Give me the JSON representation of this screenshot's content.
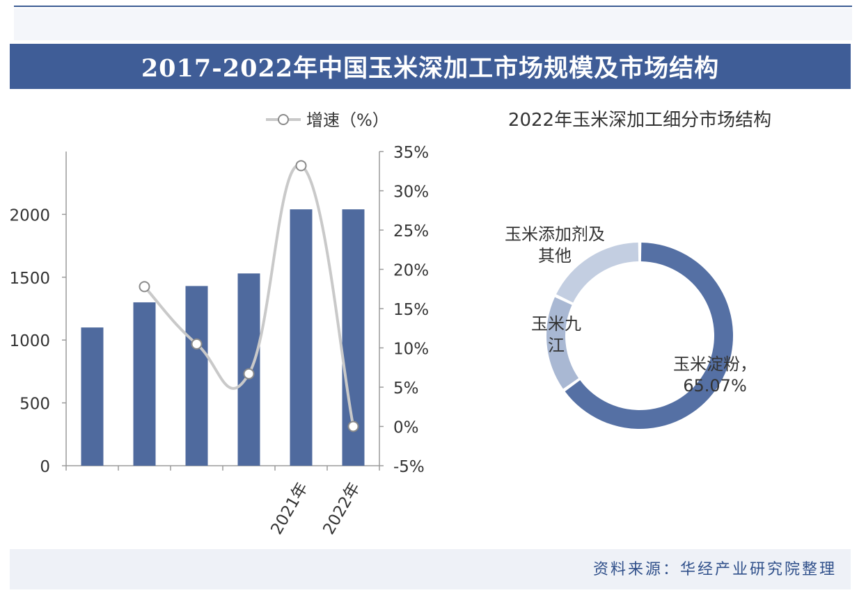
{
  "banner_title": "2017-2022年中国玉米深加工市场规模及市场结构",
  "footer": "资料来源：华经产业研究院整理",
  "colors": {
    "bar": "#4f6a9e",
    "line": "#c9c9c9",
    "banner": "#3f5d97",
    "donut_main": "#5570a4",
    "donut_second": "#a9b8d3",
    "donut_third": "#c3cee1"
  },
  "chart_data": [
    {
      "type": "bar",
      "title": "",
      "categories": [
        "",
        "",
        "",
        "",
        "2021年",
        "2022年"
      ],
      "series": [
        {
          "values": [
            1100,
            1300,
            1430,
            1530,
            2040,
            2040
          ]
        },
        {
          "name": "增速（%）",
          "type": "line",
          "axis": "right",
          "values": [
            null,
            17.8,
            10.5,
            6.7,
            33.2,
            0.0
          ]
        }
      ],
      "y_left_ticks": [
        "0",
        "500",
        "1000",
        "1500",
        "2000"
      ],
      "y_left_range": [
        0,
        2500
      ],
      "y_right_ticks": [
        "35%",
        "30%",
        "25%",
        "20%",
        "15%",
        "10%",
        "5%",
        "0%",
        "-5%"
      ],
      "y_right_range": [
        -5,
        35
      ],
      "legend_label": "增速（%）",
      "legend_position": "top"
    },
    {
      "type": "pie",
      "title": "2022年玉米深加工细分市场结构",
      "slices": [
        {
          "label": "玉米淀粉，65.07%",
          "value": 65.07
        },
        {
          "label": "玉米九江",
          "value": 17.0
        },
        {
          "label": "玉米添加剂及其他",
          "value": 17.93
        }
      ]
    }
  ]
}
